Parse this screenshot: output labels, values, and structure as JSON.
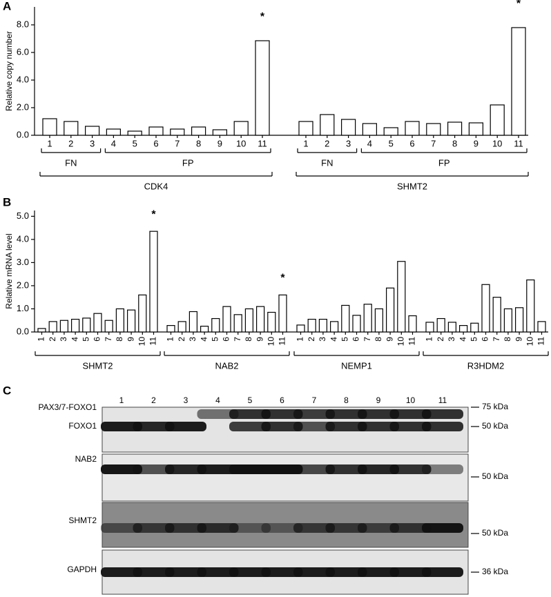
{
  "chart_data": [
    {
      "type": "bar",
      "panel": "A",
      "y_label": "Relative copy number",
      "categories": [
        "1",
        "2",
        "3",
        "4",
        "5",
        "6",
        "7",
        "8",
        "9",
        "10",
        "11"
      ],
      "subgroup_labels": [
        "FN",
        "FP"
      ],
      "ylim": [
        0,
        9.3
      ],
      "yticks": [
        {
          "value": 0,
          "label": "0.0"
        },
        {
          "value": 2,
          "label": "2.0"
        },
        {
          "value": 4,
          "label": "4.0"
        },
        {
          "value": 6,
          "label": "6.0"
        },
        {
          "value": 8,
          "label": "8.0"
        }
      ],
      "color": "#ffffff",
      "series": [
        {
          "name": "CDK4",
          "values": [
            1.2,
            1.0,
            0.65,
            0.45,
            0.3,
            0.6,
            0.45,
            0.6,
            0.4,
            1.0,
            6.85
          ],
          "stars": [
            null,
            null,
            null,
            null,
            null,
            null,
            null,
            null,
            null,
            null,
            "*"
          ]
        },
        {
          "name": "SHMT2",
          "values": [
            1.0,
            1.5,
            1.15,
            0.85,
            0.55,
            1.0,
            0.85,
            0.95,
            0.9,
            2.2,
            7.8
          ],
          "stars": [
            null,
            null,
            null,
            null,
            null,
            null,
            null,
            null,
            null,
            null,
            "*"
          ]
        }
      ]
    },
    {
      "type": "bar",
      "panel": "B",
      "y_label": "Relative mRNA level",
      "categories": [
        "1",
        "2",
        "3",
        "4",
        "5",
        "6",
        "7",
        "8",
        "9",
        "10",
        "11"
      ],
      "ylim": [
        0,
        5.25
      ],
      "yticks": [
        {
          "value": 0,
          "label": "0.0"
        },
        {
          "value": 1,
          "label": "1.0"
        },
        {
          "value": 2,
          "label": "2.0"
        },
        {
          "value": 3,
          "label": "3.0"
        },
        {
          "value": 4,
          "label": "4.0"
        },
        {
          "value": 5,
          "label": "5.0"
        }
      ],
      "color": "#ffffff",
      "series": [
        {
          "name": "SHMT2",
          "values": [
            0.15,
            0.45,
            0.5,
            0.55,
            0.6,
            0.8,
            0.5,
            1.0,
            0.95,
            1.6,
            4.35
          ],
          "stars": [
            null,
            null,
            null,
            null,
            null,
            null,
            null,
            null,
            null,
            null,
            "*"
          ]
        },
        {
          "name": "NAB2",
          "values": [
            0.28,
            0.45,
            0.88,
            0.25,
            0.58,
            1.1,
            0.75,
            1.0,
            1.1,
            0.85,
            1.6
          ],
          "stars": [
            null,
            null,
            null,
            null,
            null,
            null,
            null,
            null,
            null,
            null,
            "*"
          ]
        },
        {
          "name": "NEMP1",
          "values": [
            0.3,
            0.55,
            0.55,
            0.45,
            1.15,
            0.72,
            1.2,
            1.0,
            1.9,
            3.05,
            0.7
          ]
        },
        {
          "name": "R3HDM2",
          "values": [
            0.42,
            0.58,
            0.42,
            0.28,
            0.38,
            2.05,
            1.5,
            1.0,
            1.05,
            2.25,
            0.45
          ]
        }
      ]
    }
  ],
  "blot": {
    "panel": "C",
    "lanes": [
      "1",
      "2",
      "3",
      "4",
      "5",
      "6",
      "7",
      "8",
      "9",
      "10",
      "11"
    ],
    "rows": [
      {
        "labels": [
          "PAX3/7-FOXO1",
          "FOXO1"
        ],
        "markers": [
          "75 kDa",
          "50 kDa"
        ]
      },
      {
        "labels": [
          "NAB2"
        ],
        "markers": [
          "50 kDa"
        ]
      },
      {
        "labels": [
          "SHMT2"
        ],
        "markers": [
          "50 kDa"
        ]
      },
      {
        "labels": [
          "GAPDH"
        ],
        "markers": [
          "36 kDa"
        ]
      }
    ]
  }
}
